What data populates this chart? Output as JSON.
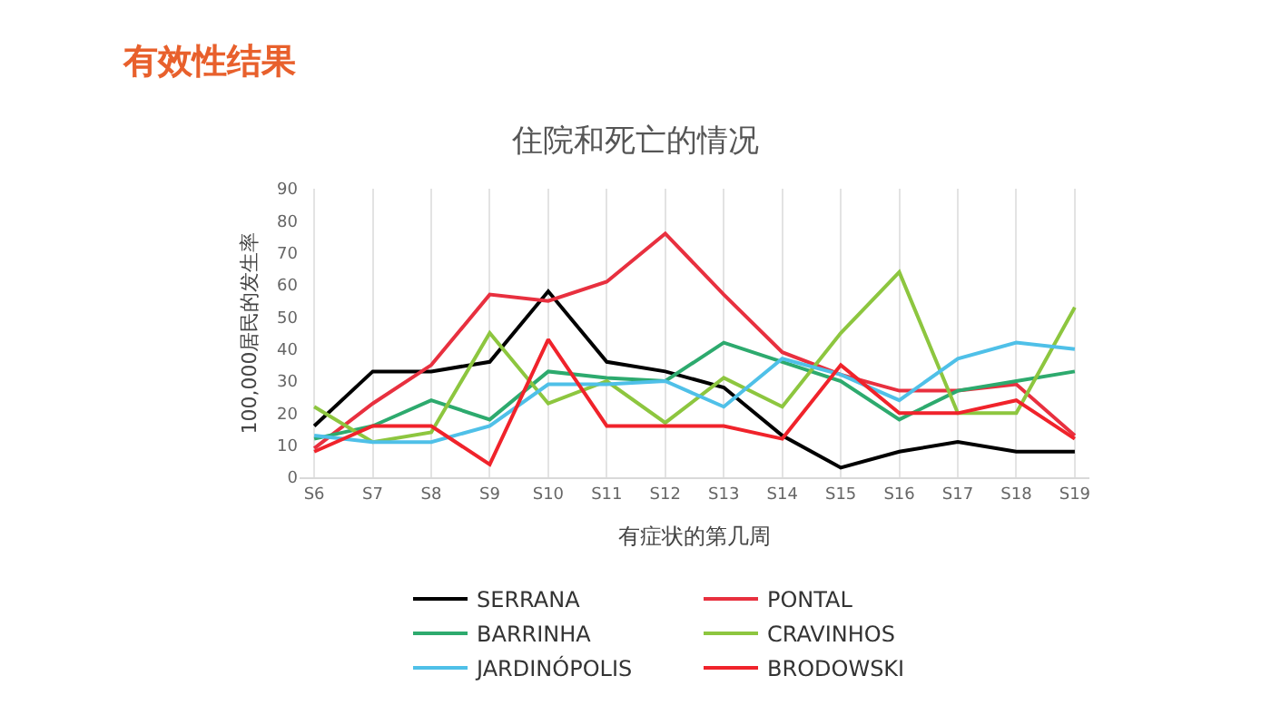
{
  "chart_data": {
    "type": "line",
    "title": "住院和死亡的情况",
    "annotations": [
      "有效性结果"
    ],
    "xlabel": "有症状的第几周",
    "ylabel": "100,000居民的发生率",
    "categories": [
      "S6",
      "S7",
      "S8",
      "S9",
      "S10",
      "S11",
      "S12",
      "S13",
      "S14",
      "S15",
      "S16",
      "S17",
      "S18",
      "S19"
    ],
    "series": [
      {
        "name": "SERRANA",
        "color": "#000000",
        "values": [
          16,
          33,
          33,
          36,
          58,
          36,
          33,
          28,
          13,
          3,
          8,
          11,
          8,
          8
        ]
      },
      {
        "name": "PONTAL",
        "color": "#e8303f",
        "values": [
          9,
          23,
          35,
          57,
          55,
          61,
          76,
          57,
          39,
          32,
          27,
          27,
          29,
          13
        ]
      },
      {
        "name": "BARRINHA",
        "color": "#2daa6e",
        "values": [
          12,
          16,
          24,
          18,
          33,
          31,
          30,
          42,
          36,
          30,
          18,
          27,
          30,
          33
        ]
      },
      {
        "name": "CRAVINHOS",
        "color": "#8dc63f",
        "values": [
          22,
          11,
          14,
          45,
          23,
          30,
          17,
          31,
          22,
          45,
          64,
          20,
          20,
          53
        ]
      },
      {
        "name": "JARDINÓPOLIS",
        "color": "#4fc0e8",
        "values": [
          13,
          11,
          11,
          16,
          29,
          29,
          30,
          22,
          37,
          32,
          24,
          37,
          42,
          40
        ]
      },
      {
        "name": "BRODOWSKI",
        "color": "#f0232b",
        "values": [
          8,
          16,
          16,
          4,
          43,
          16,
          16,
          16,
          12,
          35,
          20,
          20,
          24,
          12
        ]
      }
    ],
    "ylim": [
      0,
      90
    ],
    "yticks": [
      0,
      10,
      20,
      30,
      40,
      50,
      60,
      70,
      80,
      90
    ],
    "grid": "x",
    "legend": "bottom",
    "marker": "none",
    "line_style": "solid"
  }
}
